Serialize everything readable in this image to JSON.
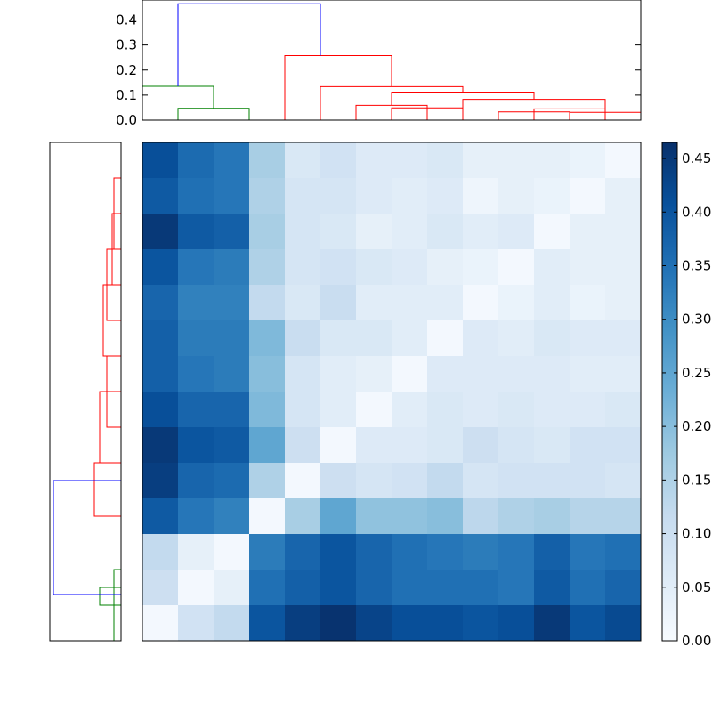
{
  "chart_data": [
    {
      "type": "dendrogram",
      "orientation": "top",
      "ylim": [
        0,
        0.48
      ],
      "yticks": [
        0.0,
        0.1,
        0.2,
        0.3,
        0.4
      ],
      "ytick_labels": [
        "0.0",
        "0.1",
        "0.2",
        "0.3",
        "0.4"
      ],
      "leaf_count": 14,
      "links": [
        {
          "x": [
            0.5,
            2.5
          ],
          "y_left": 0.0,
          "y_right": 0.0,
          "top": 0.047,
          "color": "#008000"
        },
        {
          "x": [
            5.5,
            7.5
          ],
          "y_left": 0.0,
          "y_right": 0.0,
          "top": 0.059,
          "color": "#ff0000"
        },
        {
          "x": [
            6.5,
            8.5
          ],
          "y_left": 0.0,
          "y_right": 0.0,
          "top": 0.049,
          "color": "#ff0000"
        },
        {
          "x": [
            9.5,
            11.5
          ],
          "y_left": 0.0,
          "y_right": 0.0,
          "top": 0.033,
          "color": "#ff0000"
        },
        {
          "x": [
            10.5,
            12.5
          ],
          "y_left": 0.0,
          "y_right": 0.0,
          "top": 0.045,
          "color": "#ff0000"
        },
        {
          "x": [
            11.5,
            13.5
          ],
          "y_left": 0.0,
          "y_right": 0.0,
          "top": 0.031,
          "color": "#ff0000"
        },
        {
          "x": [
            -0.5,
            1.5
          ],
          "y_left": 0.0,
          "y_right": 0.047,
          "top": 0.135,
          "color": "#008000"
        },
        {
          "x": [
            8.5,
            12.5
          ],
          "y_left": 0.0,
          "y_right": 0.033,
          "top": 0.083,
          "color": "#ff0000"
        },
        {
          "x": [
            6.5,
            10.5
          ],
          "y_left": 0.059,
          "y_right": 0.083,
          "top": 0.112,
          "color": "#ff0000"
        },
        {
          "x": [
            4.5,
            8.5
          ],
          "y_left": 0.0,
          "y_right": 0.112,
          "top": 0.134,
          "color": "#ff0000"
        },
        {
          "x": [
            3.5,
            6.5
          ],
          "y_left": 0.0,
          "y_right": 0.134,
          "top": 0.258,
          "color": "#ff0000"
        },
        {
          "x": [
            0.5,
            4.5
          ],
          "y_left": 0.135,
          "y_right": 0.258,
          "top": 0.465,
          "color": "#0000ff"
        }
      ]
    },
    {
      "type": "dendrogram",
      "orientation": "left",
      "leaf_count": 14,
      "links": [
        {
          "row": [
            0.5,
            2.5
          ],
          "top": 0.1,
          "color": "#ff0000"
        },
        {
          "row": [
            1.5,
            3.5
          ],
          "top": 0.125,
          "color": "#ff0000"
        },
        {
          "row": [
            2.5,
            4.5
          ],
          "top": 0.2,
          "color": "#ff0000"
        },
        {
          "row": [
            3.5,
            5.5
          ],
          "top": 0.25,
          "color": "#ff0000"
        },
        {
          "row": [
            5.5,
            7.5
          ],
          "top": 0.2,
          "color": "#ff0000"
        },
        {
          "row": [
            6.5,
            8.5
          ],
          "top": 0.3,
          "color": "#ff0000"
        },
        {
          "row": [
            8.5,
            10.0
          ],
          "top": 0.375,
          "color": "#ff0000"
        },
        {
          "row": [
            11.5,
            13.5
          ],
          "top": 0.1,
          "color": "#008000"
        },
        {
          "row": [
            12.0,
            12.5
          ],
          "top": 0.3,
          "color": "#008000"
        },
        {
          "row": [
            9.0,
            12.2
          ],
          "top": 0.95,
          "color": "#0000ff"
        }
      ]
    },
    {
      "type": "heatmap",
      "colormap": "Blues",
      "rows": 14,
      "cols": 14,
      "values": [
        [
          0.41,
          0.36,
          0.34,
          0.16,
          0.07,
          0.09,
          0.06,
          0.06,
          0.07,
          0.04,
          0.04,
          0.04,
          0.03,
          0.01
        ],
        [
          0.39,
          0.35,
          0.34,
          0.15,
          0.08,
          0.08,
          0.06,
          0.05,
          0.06,
          0.02,
          0.04,
          0.03,
          0.01,
          0.04
        ],
        [
          0.45,
          0.39,
          0.38,
          0.16,
          0.08,
          0.07,
          0.04,
          0.05,
          0.07,
          0.05,
          0.06,
          0.01,
          0.04,
          0.04
        ],
        [
          0.4,
          0.34,
          0.33,
          0.15,
          0.08,
          0.09,
          0.07,
          0.06,
          0.04,
          0.03,
          0.01,
          0.05,
          0.04,
          0.04
        ],
        [
          0.37,
          0.32,
          0.32,
          0.12,
          0.07,
          0.11,
          0.05,
          0.05,
          0.05,
          0.01,
          0.03,
          0.05,
          0.03,
          0.04
        ],
        [
          0.38,
          0.33,
          0.33,
          0.21,
          0.11,
          0.07,
          0.07,
          0.05,
          0.01,
          0.06,
          0.05,
          0.07,
          0.06,
          0.06
        ],
        [
          0.38,
          0.34,
          0.33,
          0.2,
          0.08,
          0.05,
          0.04,
          0.01,
          0.06,
          0.06,
          0.06,
          0.06,
          0.05,
          0.05
        ],
        [
          0.41,
          0.37,
          0.37,
          0.21,
          0.08,
          0.05,
          0.01,
          0.05,
          0.07,
          0.06,
          0.07,
          0.06,
          0.06,
          0.07
        ],
        [
          0.45,
          0.4,
          0.39,
          0.25,
          0.1,
          0.01,
          0.06,
          0.06,
          0.07,
          0.1,
          0.08,
          0.07,
          0.09,
          0.09
        ],
        [
          0.44,
          0.37,
          0.36,
          0.15,
          0.01,
          0.1,
          0.08,
          0.09,
          0.12,
          0.08,
          0.09,
          0.09,
          0.09,
          0.08
        ],
        [
          0.39,
          0.34,
          0.32,
          0.01,
          0.16,
          0.25,
          0.19,
          0.19,
          0.2,
          0.13,
          0.15,
          0.16,
          0.14,
          0.14
        ],
        [
          0.12,
          0.04,
          0.01,
          0.33,
          0.37,
          0.4,
          0.37,
          0.35,
          0.34,
          0.33,
          0.34,
          0.38,
          0.34,
          0.35
        ],
        [
          0.1,
          0.01,
          0.04,
          0.35,
          0.38,
          0.4,
          0.37,
          0.35,
          0.35,
          0.35,
          0.34,
          0.39,
          0.35,
          0.37
        ],
        [
          0.01,
          0.09,
          0.12,
          0.4,
          0.44,
          0.46,
          0.43,
          0.41,
          0.41,
          0.4,
          0.41,
          0.45,
          0.4,
          0.42
        ]
      ],
      "vmin": 0.0,
      "vmax": 0.465
    },
    {
      "type": "colorbar",
      "colormap": "Blues",
      "range": [
        0.0,
        0.465
      ],
      "ticks": [
        0.0,
        0.05,
        0.1,
        0.15,
        0.2,
        0.25,
        0.3,
        0.35,
        0.4,
        0.45
      ],
      "tick_labels": [
        "0.00",
        "0.05",
        "0.10",
        "0.15",
        "0.20",
        "0.25",
        "0.30",
        "0.35",
        "0.40",
        "0.45"
      ]
    }
  ]
}
